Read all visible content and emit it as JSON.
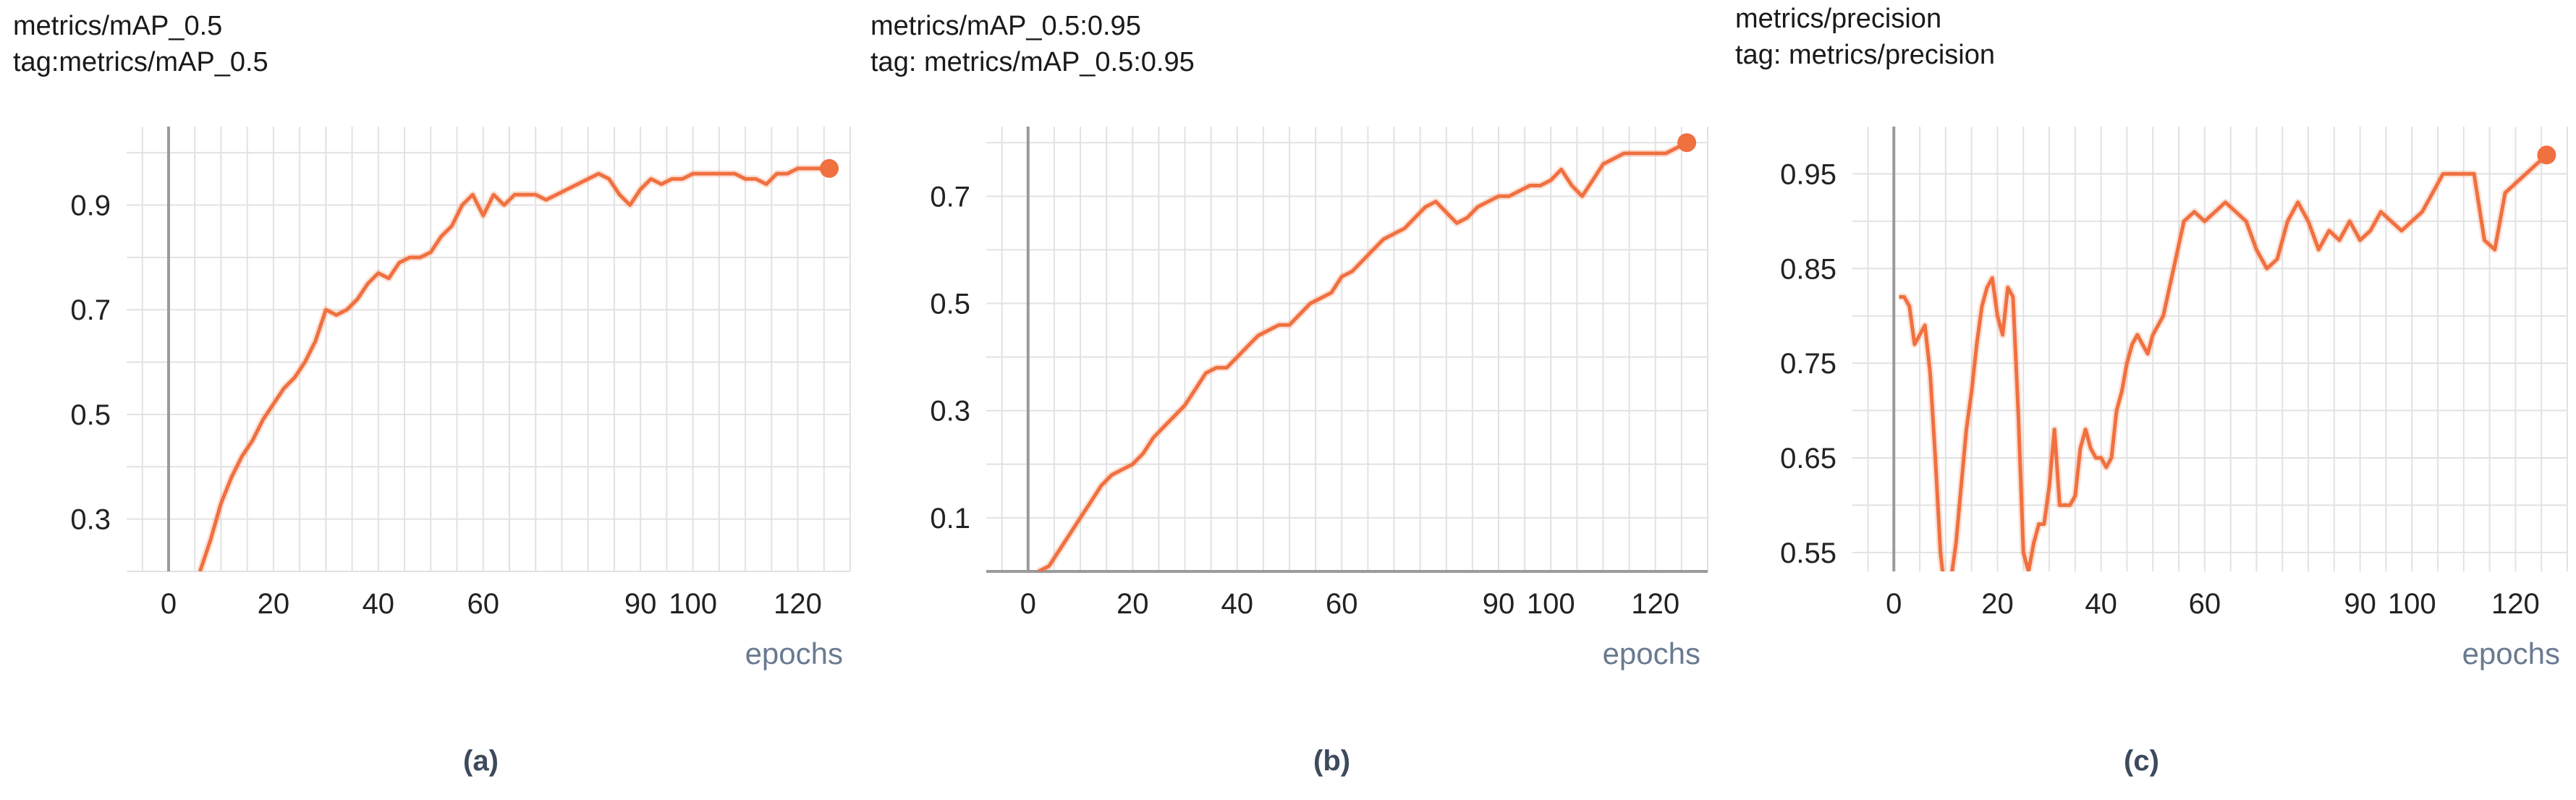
{
  "chart_data": [
    {
      "type": "line",
      "panel_label": "(a)",
      "title_lines": [
        "metrics/mAP_0.5",
        "tag:metrics/mAP_0.5"
      ],
      "xlabel": "epochs",
      "xlim": [
        -8,
        130
      ],
      "ylim": [
        0.2,
        1.05
      ],
      "xticks": [
        0,
        20,
        40,
        60,
        90,
        100,
        120
      ],
      "xtick_labels": [
        "0",
        "20",
        "40",
        "60",
        "90",
        "100",
        "120"
      ],
      "yticks": [
        0.3,
        0.5,
        0.7,
        0.9
      ],
      "ytick_labels": [
        "0.3",
        "0.5",
        "0.7",
        "0.9"
      ],
      "grid": true,
      "color": "#f07040",
      "series": [
        {
          "x": [
            6,
            8,
            10,
            12,
            14,
            16,
            18,
            20,
            22,
            24,
            26,
            28,
            30,
            32,
            34,
            36,
            38,
            40,
            42,
            44,
            46,
            48,
            50,
            52,
            54,
            56,
            58,
            60,
            62,
            64,
            66,
            68,
            70,
            72,
            74,
            76,
            78,
            80,
            82,
            84,
            86,
            88,
            90,
            92,
            94,
            96,
            98,
            100,
            102,
            104,
            106,
            108,
            110,
            112,
            114,
            116,
            118,
            120,
            122,
            124,
            126
          ],
          "y": [
            0.2,
            0.26,
            0.33,
            0.38,
            0.42,
            0.45,
            0.49,
            0.52,
            0.55,
            0.57,
            0.6,
            0.64,
            0.7,
            0.69,
            0.7,
            0.72,
            0.75,
            0.77,
            0.76,
            0.79,
            0.8,
            0.8,
            0.81,
            0.84,
            0.86,
            0.9,
            0.92,
            0.88,
            0.92,
            0.9,
            0.92,
            0.92,
            0.92,
            0.91,
            0.92,
            0.93,
            0.94,
            0.95,
            0.96,
            0.95,
            0.92,
            0.9,
            0.93,
            0.95,
            0.94,
            0.95,
            0.95,
            0.96,
            0.96,
            0.96,
            0.96,
            0.96,
            0.95,
            0.95,
            0.94,
            0.96,
            0.96,
            0.97,
            0.97,
            0.97,
            0.97
          ]
        }
      ]
    },
    {
      "type": "line",
      "panel_label": "(b)",
      "title_lines": [
        "metrics/mAP_0.5:0.95",
        "tag: metrics/mAP_0.5:0.95"
      ],
      "xlabel": "epochs",
      "xlim": [
        -8,
        130
      ],
      "ylim": [
        0,
        0.83
      ],
      "xticks": [
        0,
        20,
        40,
        60,
        90,
        100,
        120
      ],
      "xtick_labels": [
        "0",
        "20",
        "40",
        "60",
        "90",
        "100",
        "120"
      ],
      "yticks": [
        0.1,
        0.3,
        0.5,
        0.7
      ],
      "ytick_labels": [
        "0.1",
        "0.3",
        "0.5",
        "0.7"
      ],
      "grid": true,
      "color": "#f07040",
      "series": [
        {
          "x": [
            2,
            4,
            6,
            8,
            10,
            12,
            14,
            16,
            18,
            20,
            22,
            24,
            26,
            28,
            30,
            32,
            34,
            36,
            38,
            40,
            42,
            44,
            46,
            48,
            50,
            52,
            54,
            56,
            58,
            60,
            62,
            64,
            66,
            68,
            70,
            72,
            74,
            76,
            78,
            80,
            82,
            84,
            86,
            88,
            90,
            92,
            94,
            96,
            98,
            100,
            102,
            104,
            106,
            108,
            110,
            112,
            114,
            116,
            118,
            120,
            122,
            124,
            126
          ],
          "y": [
            0,
            0.01,
            0.04,
            0.07,
            0.1,
            0.13,
            0.16,
            0.18,
            0.19,
            0.2,
            0.22,
            0.25,
            0.27,
            0.29,
            0.31,
            0.34,
            0.37,
            0.38,
            0.38,
            0.4,
            0.42,
            0.44,
            0.45,
            0.46,
            0.46,
            0.48,
            0.5,
            0.51,
            0.52,
            0.55,
            0.56,
            0.58,
            0.6,
            0.62,
            0.63,
            0.64,
            0.66,
            0.68,
            0.69,
            0.67,
            0.65,
            0.66,
            0.68,
            0.69,
            0.7,
            0.7,
            0.71,
            0.72,
            0.72,
            0.73,
            0.75,
            0.72,
            0.7,
            0.73,
            0.76,
            0.77,
            0.78,
            0.78,
            0.78,
            0.78,
            0.78,
            0.79,
            0.8
          ]
        }
      ]
    },
    {
      "type": "line",
      "panel_label": "(c)",
      "title_lines": [
        "metrics/precision",
        "tag: metrics/precision"
      ],
      "xlabel": "epochs",
      "xlim": [
        -8,
        130
      ],
      "ylim": [
        0.53,
        1.0
      ],
      "xticks": [
        0,
        20,
        40,
        60,
        90,
        100,
        120
      ],
      "xtick_labels": [
        "0",
        "20",
        "40",
        "60",
        "90",
        "100",
        "120"
      ],
      "yticks": [
        0.55,
        0.65,
        0.75,
        0.85,
        0.95
      ],
      "ytick_labels": [
        "0.55",
        "0.65",
        "0.75",
        "0.85",
        "0.95"
      ],
      "grid": true,
      "color": "#f07040",
      "series": [
        {
          "x": [
            1,
            2,
            3,
            4,
            5,
            6,
            7,
            8,
            9,
            10,
            11,
            12,
            13,
            14,
            15,
            16,
            17,
            18,
            19,
            20,
            21,
            22,
            23,
            24,
            25,
            26,
            27,
            28,
            29,
            30,
            31,
            32,
            33,
            34,
            35,
            36,
            37,
            38,
            39,
            40,
            41,
            42,
            43,
            44,
            45,
            46,
            47,
            48,
            49,
            50,
            52,
            54,
            56,
            58,
            60,
            62,
            64,
            66,
            68,
            70,
            72,
            74,
            76,
            78,
            80,
            82,
            84,
            86,
            88,
            90,
            92,
            94,
            96,
            98,
            100,
            102,
            104,
            106,
            108,
            110,
            112,
            114,
            116,
            118,
            120,
            122,
            124,
            126
          ],
          "y": [
            0.82,
            0.82,
            0.81,
            0.77,
            0.78,
            0.79,
            0.74,
            0.65,
            0.55,
            0.5,
            0.52,
            0.56,
            0.62,
            0.68,
            0.72,
            0.77,
            0.81,
            0.83,
            0.84,
            0.8,
            0.78,
            0.83,
            0.82,
            0.7,
            0.55,
            0.53,
            0.56,
            0.58,
            0.58,
            0.62,
            0.68,
            0.6,
            0.6,
            0.6,
            0.61,
            0.66,
            0.68,
            0.66,
            0.65,
            0.65,
            0.64,
            0.65,
            0.7,
            0.72,
            0.75,
            0.77,
            0.78,
            0.77,
            0.76,
            0.78,
            0.8,
            0.85,
            0.9,
            0.91,
            0.9,
            0.91,
            0.92,
            0.91,
            0.9,
            0.87,
            0.85,
            0.86,
            0.9,
            0.92,
            0.9,
            0.87,
            0.89,
            0.88,
            0.9,
            0.88,
            0.89,
            0.91,
            0.9,
            0.89,
            0.9,
            0.91,
            0.93,
            0.95,
            0.95,
            0.95,
            0.95,
            0.88,
            0.87,
            0.93,
            0.94,
            0.95,
            0.96,
            0.97
          ]
        }
      ]
    }
  ]
}
